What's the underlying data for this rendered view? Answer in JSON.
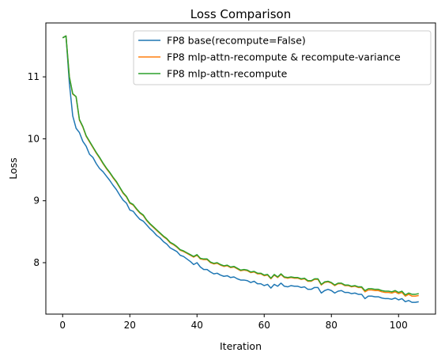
{
  "chart_data": {
    "type": "line",
    "title": "Loss Comparison",
    "xlabel": "Iteration",
    "ylabel": "Loss",
    "xlim": [
      -5,
      111
    ],
    "ylim": [
      7.17,
      11.87
    ],
    "xticks": [
      0,
      20,
      40,
      60,
      80,
      100
    ],
    "yticks": [
      8,
      9,
      10,
      11
    ],
    "grid": false,
    "legend_position": "top-right",
    "series": [
      {
        "name": "FP8 base(recompute=False)",
        "color": "#1f77b4",
        "x": [
          0,
          1,
          2,
          3,
          4,
          5,
          6,
          7,
          8,
          9,
          10,
          11,
          12,
          13,
          14,
          15,
          16,
          17,
          18,
          19,
          20,
          21,
          22,
          23,
          24,
          25,
          26,
          27,
          28,
          29,
          30,
          31,
          32,
          33,
          34,
          35,
          36,
          37,
          38,
          39,
          40,
          41,
          42,
          43,
          44,
          45,
          46,
          47,
          48,
          49,
          50,
          51,
          52,
          53,
          54,
          55,
          56,
          57,
          58,
          59,
          60,
          61,
          62,
          63,
          64,
          65,
          66,
          67,
          68,
          69,
          70,
          71,
          72,
          73,
          74,
          75,
          76,
          77,
          78,
          79,
          80,
          81,
          82,
          83,
          84,
          85,
          86,
          87,
          88,
          89,
          90,
          91,
          92,
          93,
          94,
          95,
          96,
          97,
          98,
          99,
          100,
          101,
          102,
          103,
          104,
          105,
          106
        ],
        "y": [
          11.63,
          11.66,
          10.9,
          10.37,
          10.17,
          10.1,
          9.96,
          9.88,
          9.75,
          9.7,
          9.6,
          9.52,
          9.47,
          9.4,
          9.33,
          9.25,
          9.18,
          9.09,
          9.01,
          8.96,
          8.85,
          8.83,
          8.76,
          8.7,
          8.67,
          8.61,
          8.55,
          8.5,
          8.44,
          8.4,
          8.34,
          8.3,
          8.24,
          8.21,
          8.18,
          8.12,
          8.1,
          8.06,
          8.02,
          7.97,
          8.0,
          7.93,
          7.89,
          7.89,
          7.85,
          7.82,
          7.83,
          7.8,
          7.78,
          7.79,
          7.76,
          7.77,
          7.74,
          7.72,
          7.72,
          7.71,
          7.68,
          7.7,
          7.66,
          7.66,
          7.63,
          7.65,
          7.59,
          7.65,
          7.62,
          7.67,
          7.62,
          7.61,
          7.63,
          7.62,
          7.62,
          7.6,
          7.61,
          7.57,
          7.57,
          7.6,
          7.6,
          7.51,
          7.55,
          7.57,
          7.55,
          7.51,
          7.54,
          7.55,
          7.52,
          7.52,
          7.5,
          7.51,
          7.49,
          7.49,
          7.42,
          7.46,
          7.46,
          7.45,
          7.45,
          7.43,
          7.42,
          7.42,
          7.41,
          7.43,
          7.4,
          7.42,
          7.37,
          7.39,
          7.36,
          7.36,
          7.37
        ]
      },
      {
        "name": "FP8 mlp-attn-recompute & recompute-variance",
        "color": "#ff7f0e",
        "x": [
          0,
          1,
          2,
          3,
          4,
          5,
          6,
          7,
          8,
          9,
          10,
          11,
          12,
          13,
          14,
          15,
          16,
          17,
          18,
          19,
          20,
          21,
          22,
          23,
          24,
          25,
          26,
          27,
          28,
          29,
          30,
          31,
          32,
          33,
          34,
          35,
          36,
          37,
          38,
          39,
          40,
          41,
          42,
          43,
          44,
          45,
          46,
          47,
          48,
          49,
          50,
          51,
          52,
          53,
          54,
          55,
          56,
          57,
          58,
          59,
          60,
          61,
          62,
          63,
          64,
          65,
          66,
          67,
          68,
          69,
          70,
          71,
          72,
          73,
          74,
          75,
          76,
          77,
          78,
          79,
          80,
          81,
          82,
          83,
          84,
          85,
          86,
          87,
          88,
          89,
          90,
          91,
          92,
          93,
          94,
          95,
          96,
          97,
          98,
          99,
          100,
          101,
          102,
          103,
          104,
          105,
          106
        ],
        "y": [
          11.63,
          11.66,
          11.0,
          10.72,
          10.68,
          10.3,
          10.19,
          10.04,
          9.95,
          9.86,
          9.77,
          9.69,
          9.6,
          9.52,
          9.45,
          9.37,
          9.3,
          9.21,
          9.12,
          9.06,
          8.96,
          8.93,
          8.86,
          8.8,
          8.76,
          8.68,
          8.62,
          8.57,
          8.52,
          8.47,
          8.42,
          8.38,
          8.32,
          8.29,
          8.25,
          8.2,
          8.18,
          8.15,
          8.12,
          8.09,
          8.12,
          8.06,
          8.05,
          8.05,
          8.0,
          7.98,
          7.99,
          7.96,
          7.94,
          7.95,
          7.92,
          7.93,
          7.9,
          7.87,
          7.88,
          7.87,
          7.84,
          7.85,
          7.82,
          7.82,
          7.79,
          7.8,
          7.74,
          7.8,
          7.76,
          7.81,
          7.76,
          7.75,
          7.76,
          7.75,
          7.75,
          7.73,
          7.74,
          7.7,
          7.7,
          7.73,
          7.73,
          7.64,
          7.68,
          7.69,
          7.67,
          7.63,
          7.66,
          7.66,
          7.63,
          7.63,
          7.61,
          7.62,
          7.6,
          7.6,
          7.53,
          7.56,
          7.56,
          7.55,
          7.55,
          7.53,
          7.52,
          7.52,
          7.51,
          7.53,
          7.5,
          7.52,
          7.46,
          7.49,
          7.46,
          7.46,
          7.47
        ]
      },
      {
        "name": "FP8 mlp-attn-recompute",
        "color": "#2ca02c",
        "x": [
          0,
          1,
          2,
          3,
          4,
          5,
          6,
          7,
          8,
          9,
          10,
          11,
          12,
          13,
          14,
          15,
          16,
          17,
          18,
          19,
          20,
          21,
          22,
          23,
          24,
          25,
          26,
          27,
          28,
          29,
          30,
          31,
          32,
          33,
          34,
          35,
          36,
          37,
          38,
          39,
          40,
          41,
          42,
          43,
          44,
          45,
          46,
          47,
          48,
          49,
          50,
          51,
          52,
          53,
          54,
          55,
          56,
          57,
          58,
          59,
          60,
          61,
          62,
          63,
          64,
          65,
          66,
          67,
          68,
          69,
          70,
          71,
          72,
          73,
          74,
          75,
          76,
          77,
          78,
          79,
          80,
          81,
          82,
          83,
          84,
          85,
          86,
          87,
          88,
          89,
          90,
          91,
          92,
          93,
          94,
          95,
          96,
          97,
          98,
          99,
          100,
          101,
          102,
          103,
          104,
          105,
          106
        ],
        "y": [
          11.63,
          11.66,
          11.0,
          10.73,
          10.68,
          10.31,
          10.2,
          10.05,
          9.96,
          9.87,
          9.78,
          9.7,
          9.61,
          9.53,
          9.46,
          9.38,
          9.31,
          9.22,
          9.13,
          9.07,
          8.97,
          8.94,
          8.87,
          8.81,
          8.77,
          8.69,
          8.63,
          8.58,
          8.53,
          8.48,
          8.43,
          8.39,
          8.33,
          8.3,
          8.26,
          8.21,
          8.19,
          8.16,
          8.13,
          8.1,
          8.13,
          8.07,
          8.06,
          8.06,
          8.01,
          7.99,
          8.0,
          7.97,
          7.95,
          7.96,
          7.93,
          7.94,
          7.91,
          7.88,
          7.89,
          7.88,
          7.85,
          7.86,
          7.83,
          7.83,
          7.8,
          7.81,
          7.75,
          7.81,
          7.77,
          7.82,
          7.77,
          7.76,
          7.77,
          7.76,
          7.76,
          7.74,
          7.75,
          7.71,
          7.71,
          7.74,
          7.74,
          7.65,
          7.69,
          7.7,
          7.68,
          7.64,
          7.67,
          7.67,
          7.64,
          7.64,
          7.62,
          7.63,
          7.61,
          7.61,
          7.55,
          7.58,
          7.58,
          7.57,
          7.57,
          7.55,
          7.54,
          7.54,
          7.53,
          7.55,
          7.52,
          7.54,
          7.48,
          7.51,
          7.49,
          7.49,
          7.5
        ]
      }
    ]
  }
}
